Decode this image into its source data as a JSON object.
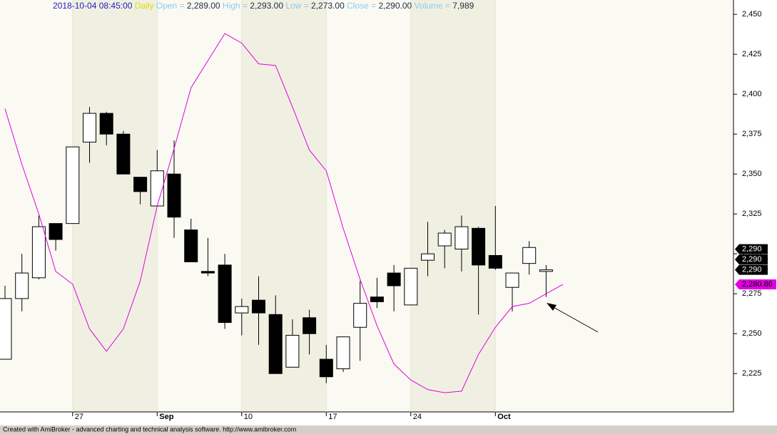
{
  "chart_data": {
    "type": "candlestick",
    "header": {
      "date": "2018-10-04 08:45:00",
      "interval": "Daily",
      "fields": [
        {
          "name": "Open =",
          "value": "2,289.00"
        },
        {
          "name": "High =",
          "value": "2,293.00"
        },
        {
          "name": "Low =",
          "value": "2,273.00"
        },
        {
          "name": "Close =",
          "value": "2,290.00"
        },
        {
          "name": "Volume =",
          "value": "7,989"
        }
      ]
    },
    "categories": [
      null,
      null,
      null,
      null,
      "27",
      null,
      null,
      null,
      null,
      "Sep",
      null,
      null,
      null,
      null,
      "10",
      null,
      null,
      null,
      null,
      "17",
      null,
      null,
      null,
      null,
      "24",
      null,
      null,
      null,
      null,
      "Oct",
      null,
      null,
      null,
      null
    ],
    "open": [
      2234,
      2272,
      2285,
      2319,
      2319,
      2370,
      2388,
      2375,
      2348,
      2330,
      2350,
      2315,
      2289,
      2293,
      2263,
      2271,
      2262,
      2229,
      2260,
      2234,
      2228,
      2254,
      2273,
      2288,
      2268,
      2296,
      2305,
      2303,
      2316,
      2299,
      2279,
      2294,
      2289,
      null
    ],
    "high": [
      2280,
      2300,
      2324,
      2319,
      2367,
      2392,
      2389,
      2377,
      2348,
      2365,
      2371,
      2322,
      2310,
      2300,
      2272,
      2286,
      2274,
      2259,
      2265,
      2243,
      2248,
      2283,
      2285,
      2293,
      2291,
      2320,
      2315,
      2324,
      2317,
      2330,
      2288,
      2308,
      2293,
      null
    ],
    "low": [
      2234,
      2264,
      2284,
      2302,
      2319,
      2357,
      2368,
      2350,
      2331,
      2330,
      2310,
      2295,
      2286,
      2253,
      2249,
      2243,
      2225,
      2229,
      2237,
      2219,
      2226,
      2233,
      2266,
      2264,
      2268,
      2286,
      2291,
      2289,
      2262,
      2290,
      2264,
      2287,
      2273,
      null
    ],
    "close": [
      2272,
      2288,
      2317,
      2309,
      2367,
      2388,
      2375,
      2350,
      2339,
      2352,
      2323,
      2295,
      2288,
      2257,
      2267,
      2263,
      2225,
      2249,
      2250,
      2223,
      2248,
      2269,
      2270,
      2280,
      2291,
      2300,
      2313,
      2317,
      2293,
      2291,
      2288,
      2304,
      2290,
      null
    ],
    "series": [
      {
        "color": "#e000e0",
        "values": [
          2391,
          2356,
          2325,
          2289,
          2281,
          2253,
          2239,
          2253,
          2283,
          2330,
          2366,
          2404,
          2421,
          2438,
          2432,
          2419,
          2418,
          2392,
          2365,
          2352,
          2316,
          2284,
          2255,
          2231,
          2221,
          2215,
          2213,
          2214,
          2237,
          2254,
          2267,
          2269,
          2275,
          2280.86
        ]
      }
    ],
    "ylim": [
      2201,
      2459
    ],
    "yticks": [
      {
        "value": 2225,
        "label": "2,225"
      },
      {
        "value": 2250,
        "label": "2,250"
      },
      {
        "value": 2275,
        "label": "2,275"
      },
      {
        "value": 2300,
        "label": "2,300"
      },
      {
        "value": 2325,
        "label": "2,325"
      },
      {
        "value": 2350,
        "label": "2,350"
      },
      {
        "value": 2375,
        "label": "2,375"
      },
      {
        "value": 2400,
        "label": "2,400"
      },
      {
        "value": 2425,
        "label": "2,425"
      },
      {
        "value": 2450,
        "label": "2,450"
      }
    ],
    "price_labels": [
      {
        "value": 2290,
        "label": "2,290",
        "color": "#000000"
      },
      {
        "value": 2290,
        "label": "2,290",
        "color": "#000000"
      },
      {
        "value": 2290,
        "label": "2,290",
        "color": "#000000"
      },
      {
        "value": 2280.86,
        "label": "2,280.86",
        "color": "#e000e0"
      }
    ],
    "footer": "Created with AmiBroker - advanced charting and technical analysis software. http://www.amibroker.com"
  }
}
